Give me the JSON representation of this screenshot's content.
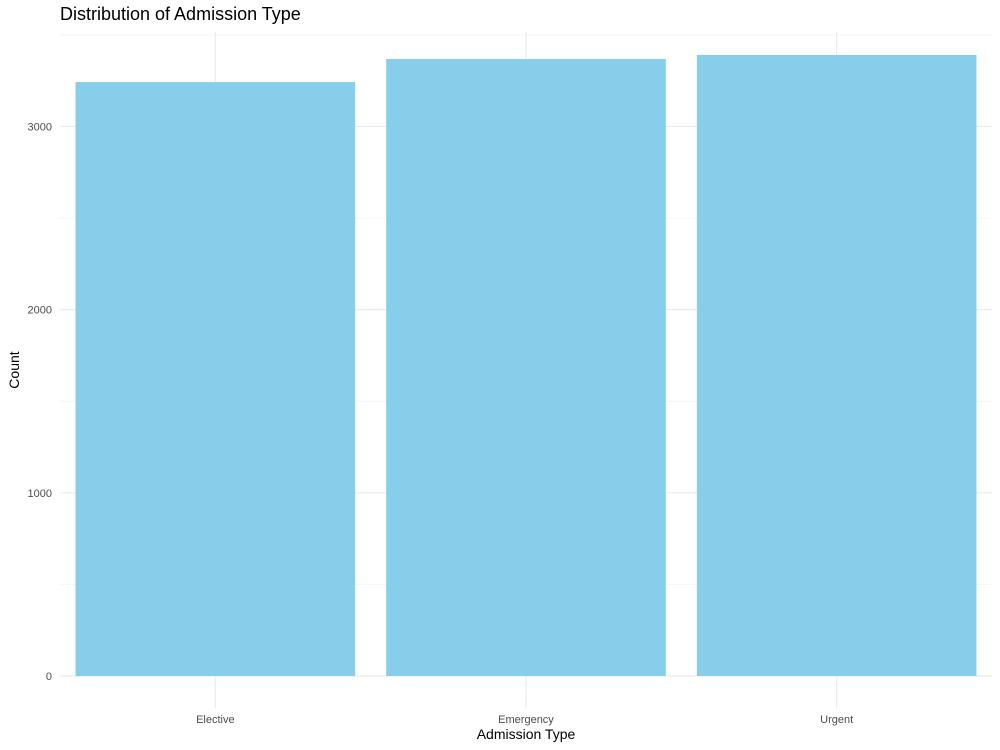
{
  "chart_data": {
    "type": "bar",
    "title": "Distribution of Admission Type",
    "xlabel": "Admission Type",
    "ylabel": "Count",
    "categories": [
      "Elective",
      "Emergency",
      "Urgent"
    ],
    "values": [
      3242,
      3368,
      3390
    ],
    "ylim": [
      0,
      3570
    ],
    "y_ticks": [
      0,
      1000,
      2000,
      3000
    ],
    "y_tick_labels": [
      "0",
      "1000",
      "2000",
      "3000"
    ],
    "grid": true,
    "legend": "none",
    "colors": {
      "bar": "#87CEEB",
      "grid_major": "#ebebeb",
      "grid_minor": "#f4f4f4",
      "background": "#ffffff"
    }
  }
}
